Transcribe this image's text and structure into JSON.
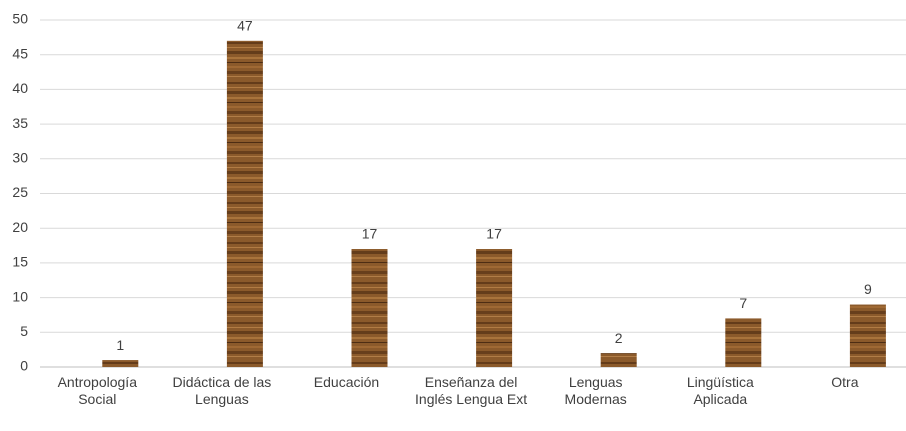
{
  "chart_data": {
    "type": "bar",
    "categories": [
      "Antropología Social",
      "Didáctica de las Lenguas",
      "Educación",
      "Enseñanza del Inglés Lengua Ext",
      "Lenguas Modernas",
      "Lingüística Aplicada",
      "Otra"
    ],
    "values": [
      1,
      47,
      17,
      17,
      2,
      7,
      9
    ],
    "color": "#8b5a2b",
    "ylim": [
      0,
      50
    ],
    "yticks": [
      0,
      5,
      10,
      15,
      20,
      25,
      30,
      35,
      40,
      45,
      50
    ],
    "grid": true
  }
}
